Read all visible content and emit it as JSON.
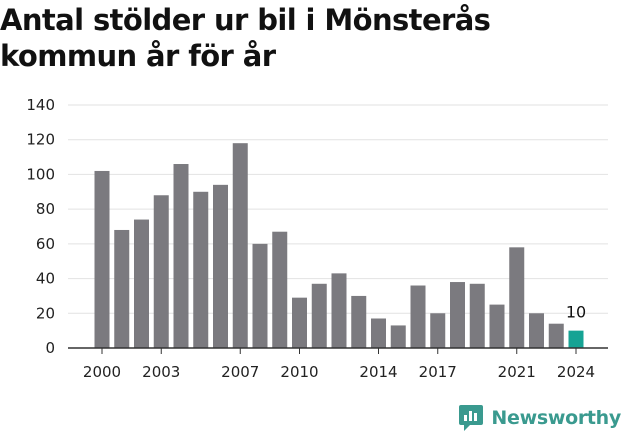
{
  "chart_data": {
    "type": "bar",
    "title": "Antal stölder ur bil i Mönsterås kommun år för år",
    "xlabel": "",
    "ylabel": "",
    "ylim": [
      0,
      140
    ],
    "yticks": [
      0,
      20,
      40,
      60,
      80,
      100,
      120,
      140
    ],
    "x": [
      2000,
      2001,
      2002,
      2003,
      2004,
      2005,
      2006,
      2007,
      2008,
      2009,
      2010,
      2011,
      2012,
      2013,
      2014,
      2015,
      2016,
      2017,
      2018,
      2019,
      2020,
      2021,
      2022,
      2023,
      2024
    ],
    "values": [
      102,
      68,
      74,
      88,
      106,
      90,
      94,
      118,
      60,
      67,
      29,
      37,
      43,
      30,
      17,
      13,
      36,
      20,
      38,
      37,
      25,
      58,
      20,
      14,
      10
    ],
    "xticks": [
      "2000",
      "2003",
      "2007",
      "2010",
      "2014",
      "2017",
      "2021",
      "2024"
    ],
    "grid": true,
    "bar_color": "#7b7a7f",
    "highlight_color": "#16a394",
    "highlight_label": "10"
  },
  "brand": {
    "name": "Newsworthy",
    "icon": "newsworthy-logo-icon",
    "color": "#3a9a8f"
  }
}
